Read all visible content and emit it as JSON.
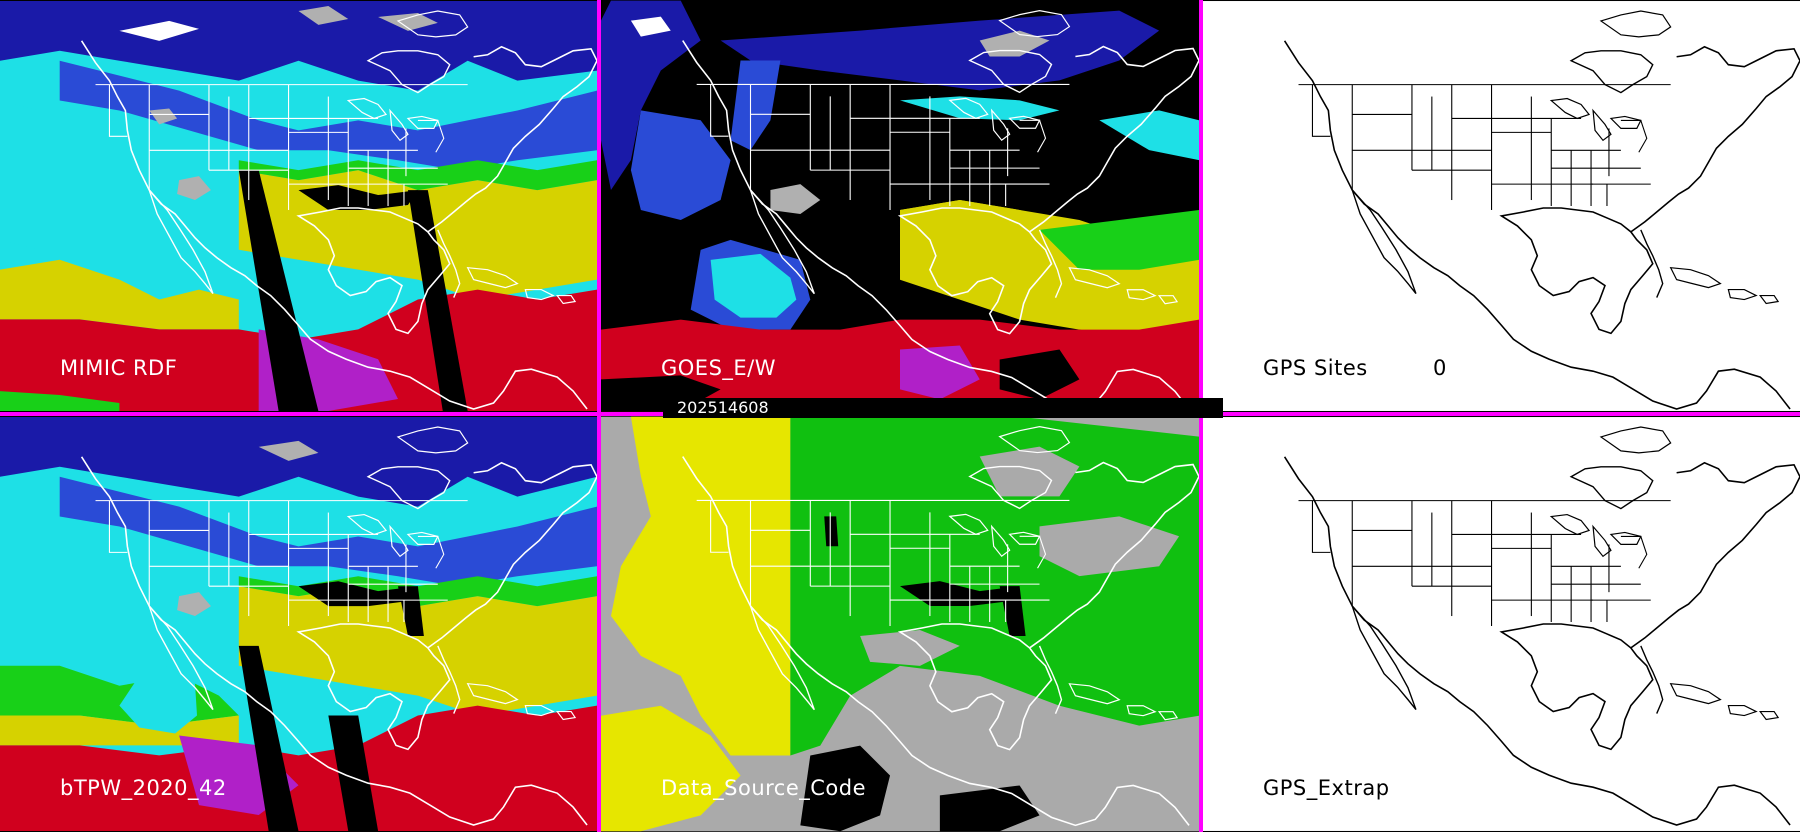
{
  "separator_color": "#ff00ff",
  "timestamp": "202514608",
  "panels": {
    "mimic_rdf": {
      "label": "MIMIC RDF"
    },
    "goes_ew": {
      "label": "GOES_E/W"
    },
    "gps_sites": {
      "label": "GPS Sites",
      "count": "0"
    },
    "btpw": {
      "label": "bTPW_2020_42"
    },
    "data_source_code": {
      "label": "Data_Source_Code"
    },
    "gps_extrap": {
      "label": "GPS_Extrap"
    }
  },
  "palette": {
    "dry": "#1a1aa8",
    "blue": "#2a4bd6",
    "cyan": "#1ee0e6",
    "green": "#18d018",
    "yellow": "#d6d200",
    "red": "#d0001e",
    "magenta": "#b020c8",
    "gray": "#b0b0b0",
    "black": "#000000",
    "white": "#ffffff",
    "ds_yellow": "#e6e600",
    "ds_green": "#10c010",
    "ds_gray": "#aaaaaa"
  }
}
